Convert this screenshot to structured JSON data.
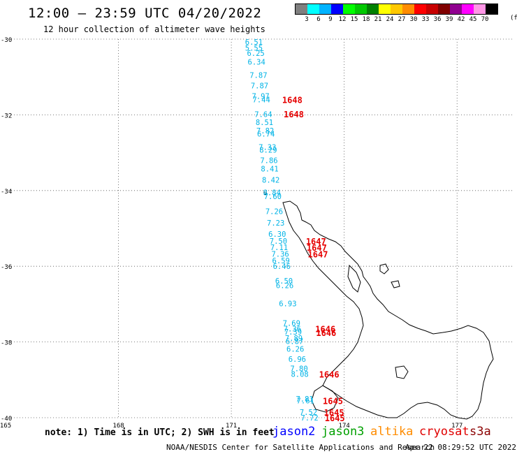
{
  "header": {
    "title": "12:00 – 23:59 UTC 04/20/2022",
    "subtitle": "12 hour collection of altimeter wave heights"
  },
  "legend": {
    "colors": [
      "#7f7f7f",
      "#00ffff",
      "#00b3ff",
      "#0000ff",
      "#00ff00",
      "#00c800",
      "#008000",
      "#ffff00",
      "#ffc800",
      "#ff8c00",
      "#ff0000",
      "#c80000",
      "#800000",
      "#900090",
      "#ff00ff",
      "#ff96e6",
      "#000000"
    ],
    "labels": [
      "3",
      "6",
      "9",
      "12",
      "15",
      "18",
      "21",
      "24",
      "27",
      "30",
      "33",
      "36",
      "39",
      "42",
      "45",
      "70"
    ],
    "unit": "(ft)"
  },
  "map": {
    "lon_range": [
      165,
      178.5
    ],
    "lat_range": [
      -40,
      -30
    ],
    "lat_labels": [
      "-30",
      "-32",
      "-34",
      "-36",
      "-38",
      "-40"
    ],
    "lon_labels": [
      "165",
      "168",
      "171",
      "174",
      "177"
    ],
    "swh_color": "#00b3e6",
    "time_color": "#e60000",
    "swh_obs": [
      {
        "lon": 171.6,
        "lat": -30.07,
        "v": "6.51"
      },
      {
        "lon": 171.6,
        "lat": -30.23,
        "v": "5.55"
      },
      {
        "lon": 171.65,
        "lat": -30.37,
        "v": "6.25"
      },
      {
        "lon": 171.67,
        "lat": -30.6,
        "v": "6.34"
      },
      {
        "lon": 171.72,
        "lat": -30.95,
        "v": "7.87"
      },
      {
        "lon": 171.75,
        "lat": -31.23,
        "v": "7.87"
      },
      {
        "lon": 171.78,
        "lat": -31.5,
        "v": "7.97"
      },
      {
        "lon": 171.8,
        "lat": -31.6,
        "v": "7.44"
      },
      {
        "lon": 171.85,
        "lat": -31.98,
        "v": "7.64"
      },
      {
        "lon": 171.88,
        "lat": -32.2,
        "v": "8.51"
      },
      {
        "lon": 171.9,
        "lat": -32.42,
        "v": "7.82"
      },
      {
        "lon": 171.92,
        "lat": -32.5,
        "v": "6.74"
      },
      {
        "lon": 171.96,
        "lat": -32.85,
        "v": "7.33"
      },
      {
        "lon": 171.98,
        "lat": -32.92,
        "v": "8.29"
      },
      {
        "lon": 172.0,
        "lat": -33.2,
        "v": "7.86"
      },
      {
        "lon": 172.02,
        "lat": -33.42,
        "v": "8.41"
      },
      {
        "lon": 172.05,
        "lat": -33.72,
        "v": "8.42"
      },
      {
        "lon": 172.08,
        "lat": -34.05,
        "v": "8.84"
      },
      {
        "lon": 172.1,
        "lat": -34.15,
        "v": "7.60"
      },
      {
        "lon": 172.14,
        "lat": -34.55,
        "v": "7.26"
      },
      {
        "lon": 172.18,
        "lat": -34.85,
        "v": "7.23"
      },
      {
        "lon": 172.22,
        "lat": -35.15,
        "v": "6.30"
      },
      {
        "lon": 172.25,
        "lat": -35.33,
        "v": "7.50"
      },
      {
        "lon": 172.27,
        "lat": -35.5,
        "v": "7.11"
      },
      {
        "lon": 172.3,
        "lat": -35.67,
        "v": "7.36"
      },
      {
        "lon": 172.32,
        "lat": -35.85,
        "v": "6.59"
      },
      {
        "lon": 172.34,
        "lat": -36.0,
        "v": "6.46"
      },
      {
        "lon": 172.4,
        "lat": -36.38,
        "v": "6.50"
      },
      {
        "lon": 172.42,
        "lat": -36.5,
        "v": "6.26"
      },
      {
        "lon": 172.5,
        "lat": -36.98,
        "v": "6.93"
      },
      {
        "lon": 172.6,
        "lat": -37.5,
        "v": "7.69"
      },
      {
        "lon": 172.62,
        "lat": -37.65,
        "v": "7.36"
      },
      {
        "lon": 172.64,
        "lat": -37.73,
        "v": "7.39"
      },
      {
        "lon": 172.66,
        "lat": -37.9,
        "v": "7.89"
      },
      {
        "lon": 172.68,
        "lat": -37.98,
        "v": "6.87"
      },
      {
        "lon": 172.7,
        "lat": -38.18,
        "v": "6.26"
      },
      {
        "lon": 172.75,
        "lat": -38.45,
        "v": "6.96"
      },
      {
        "lon": 172.8,
        "lat": -38.7,
        "v": "7.80"
      },
      {
        "lon": 172.82,
        "lat": -38.85,
        "v": "8.08"
      },
      {
        "lon": 172.95,
        "lat": -39.5,
        "v": "7.81"
      },
      {
        "lon": 172.97,
        "lat": -39.55,
        "v": "7.61"
      },
      {
        "lon": 173.05,
        "lat": -39.85,
        "v": "7.52"
      },
      {
        "lon": 173.08,
        "lat": -40.0,
        "v": "7.72"
      }
    ],
    "time_obs": [
      {
        "lon": 172.62,
        "lat": -31.6,
        "v": "1648"
      },
      {
        "lon": 172.66,
        "lat": -31.97,
        "v": "1648"
      },
      {
        "lon": 173.25,
        "lat": -35.33,
        "v": "1647"
      },
      {
        "lon": 173.27,
        "lat": -35.5,
        "v": "1647"
      },
      {
        "lon": 173.3,
        "lat": -35.67,
        "v": "1647"
      },
      {
        "lon": 173.5,
        "lat": -37.65,
        "v": "1646"
      },
      {
        "lon": 173.52,
        "lat": -37.75,
        "v": "1646"
      },
      {
        "lon": 173.6,
        "lat": -38.85,
        "v": "1646"
      },
      {
        "lon": 173.7,
        "lat": -39.55,
        "v": "1645"
      },
      {
        "lon": 173.73,
        "lat": -39.85,
        "v": "1645"
      },
      {
        "lon": 173.75,
        "lat": -40.0,
        "v": "1645"
      }
    ]
  },
  "note": "note: 1) Time is in UTC; 2) SWH is in feet",
  "satellites": [
    {
      "name": "jason2",
      "color": "#0000ff"
    },
    {
      "name": "jason3",
      "color": "#00a000"
    },
    {
      "name": "altika",
      "color": "#ff8c00"
    },
    {
      "name": "cryosat",
      "color": "#e00000"
    },
    {
      "name": "s3a",
      "color": "#8b0000"
    }
  ],
  "footer": {
    "center": "NOAA/NESDIS Center for Satellite Applications and Research",
    "timestamp": "Apr 22 08:29:52 UTC 2022"
  }
}
